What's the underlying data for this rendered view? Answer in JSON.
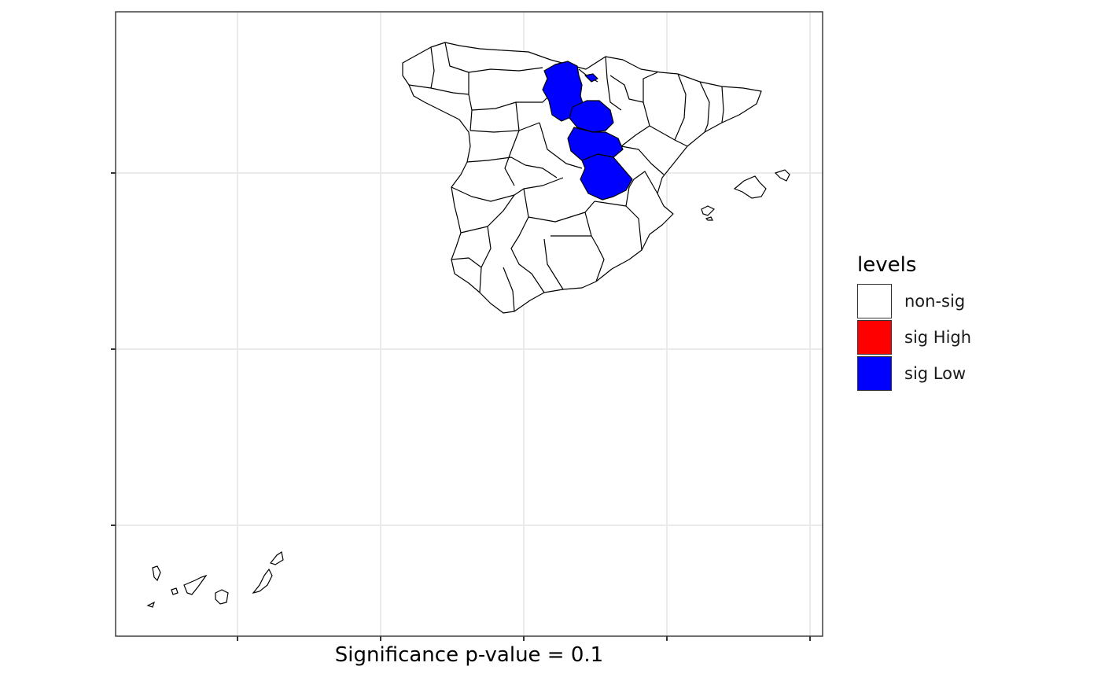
{
  "map": {
    "x_axis_title": "Significance p-value = 0.1",
    "fill_by_level": {
      "non-sig": "#ffffff",
      "sig High": "#ff0000",
      "sig Low": "#0000ff"
    },
    "regions_sig_low": [
      "Burgos",
      "Soria",
      "Guadalajara",
      "Cuenca",
      "Álava"
    ],
    "regions_sig_high": [],
    "grid": true
  },
  "legend": {
    "title": "levels",
    "placement": "right",
    "items": [
      {
        "label": "non-sig",
        "color": "#ffffff"
      },
      {
        "label": "sig High",
        "color": "#ff0000"
      },
      {
        "label": "sig Low",
        "color": "#0000ff"
      }
    ]
  }
}
